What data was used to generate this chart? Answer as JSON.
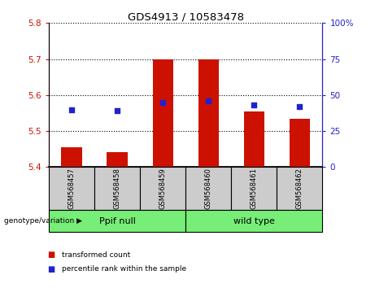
{
  "title": "GDS4913 / 10583478",
  "categories": [
    "GSM568457",
    "GSM568458",
    "GSM568459",
    "GSM568460",
    "GSM568461",
    "GSM568462"
  ],
  "bar_values": [
    5.455,
    5.442,
    5.7,
    5.7,
    5.555,
    5.535
  ],
  "dot_values": [
    40,
    39,
    45,
    46,
    43,
    42
  ],
  "ylim_left": [
    5.4,
    5.8
  ],
  "ylim_right": [
    0,
    100
  ],
  "yticks_left": [
    5.4,
    5.5,
    5.6,
    5.7,
    5.8
  ],
  "yticks_right": [
    0,
    25,
    50,
    75,
    100
  ],
  "bar_color": "#cc1100",
  "dot_color": "#2222cc",
  "group1_label": "Ppif null",
  "group2_label": "wild type",
  "group1_indices": [
    0,
    1,
    2
  ],
  "group2_indices": [
    3,
    4,
    5
  ],
  "group_bg_color": "#77ee77",
  "sample_bg_color": "#cccccc",
  "legend_bar_label": "transformed count",
  "legend_dot_label": "percentile rank within the sample",
  "genotype_label": "genotype/variation"
}
